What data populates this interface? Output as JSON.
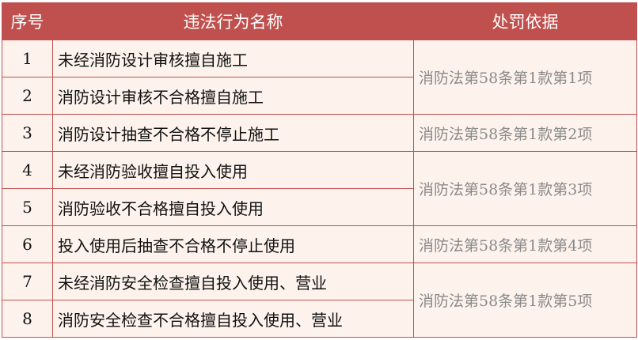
{
  "colors": {
    "header_bg": "#c0504d",
    "cell_bg": "#fdf3ec",
    "basis_text": "#8a8a8a"
  },
  "headers": {
    "num": "序号",
    "name": "违法行为名称",
    "basis": "处罚依据"
  },
  "rows": [
    {
      "num": "1",
      "name": "未经消防设计审核擅自施工"
    },
    {
      "num": "2",
      "name": "消防设计审核不合格擅自施工"
    },
    {
      "num": "3",
      "name": "消防设计抽查不合格不停止施工"
    },
    {
      "num": "4",
      "name": "未经消防验收擅自投入使用"
    },
    {
      "num": "5",
      "name": "消防验收不合格擅自投入使用"
    },
    {
      "num": "6",
      "name": "投入使用后抽查不合格不停止使用"
    },
    {
      "num": "7",
      "name": "未经消防安全检查擅自投入使用、营业"
    },
    {
      "num": "8",
      "name": "消防安全检查不合格擅自投入使用、营业"
    }
  ],
  "basis": [
    "消防法第58条第1款第1项",
    "消防法第58条第1款第2项",
    "消防法第58条第1款第3项",
    "消防法第58条第1款第4项",
    "消防法第58条第1款第5项"
  ]
}
